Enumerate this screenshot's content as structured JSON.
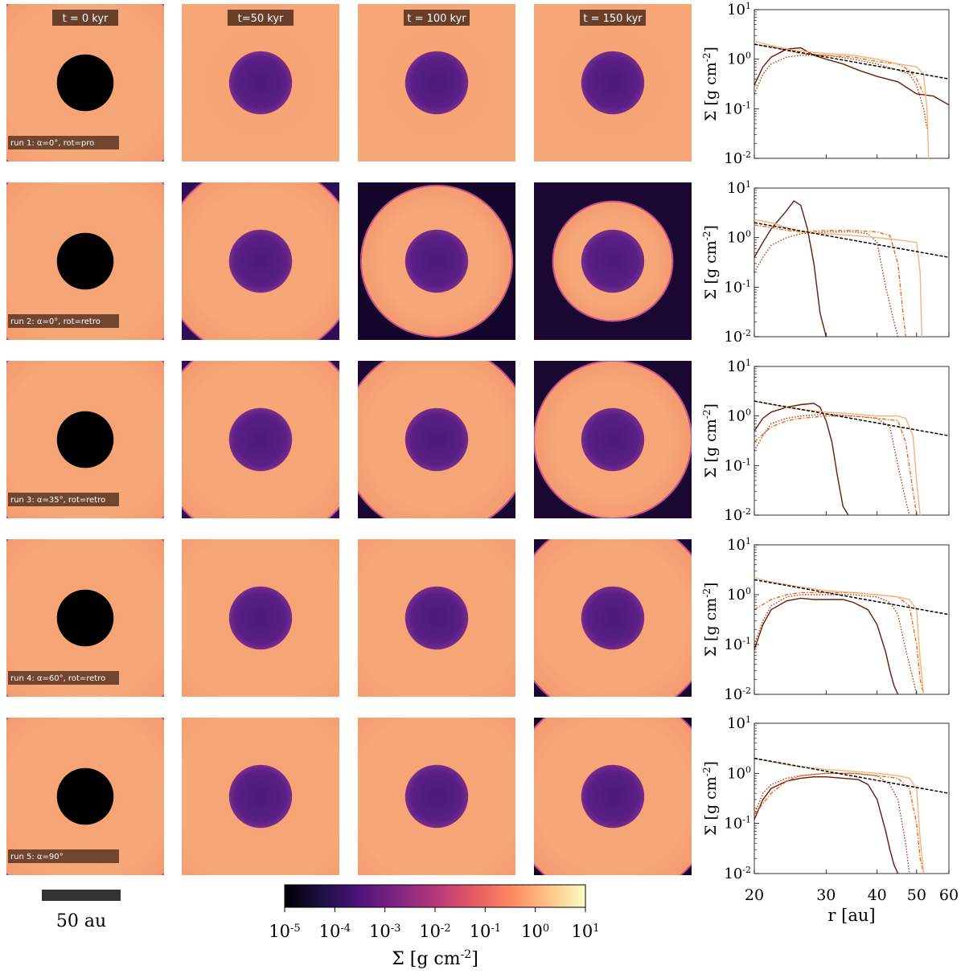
{
  "chart_data": {
    "type": "figure-grid",
    "time_labels": [
      "t = 0 kyr",
      "t=50 kyr",
      "t = 100 kyr",
      "t = 150 kyr"
    ],
    "runs": [
      {
        "label": "run 1: α=0°, rot=pro",
        "maps": [
          {
            "inner_r": 0.18,
            "outer_r": 0.7,
            "bg": "#000000"
          },
          {
            "inner_r": 0.2,
            "outer_r": 1.1,
            "bg": "#eb8566"
          },
          {
            "inner_r": 0.2,
            "outer_r": 1.1,
            "bg": "#f3b381"
          },
          {
            "inner_r": 0.2,
            "outer_r": 1.1,
            "bg": "#eea070"
          }
        ],
        "profiles": [
          {
            "x": [
              20,
              21,
              22,
              24,
              26,
              28,
              30,
              33,
              36,
              40,
              45,
              50,
              55,
              60
            ],
            "y": [
              0.3,
              0.7,
              1.1,
              1.6,
              1.7,
              1.2,
              1.0,
              0.8,
              0.6,
              0.45,
              0.35,
              0.2,
              0.18,
              0.12
            ],
            "color": "#6b1a06",
            "style": "solid"
          },
          {
            "x": [
              20,
              21,
              22,
              24,
              26,
              30,
              35,
              40,
              45,
              48,
              50,
              52,
              53
            ],
            "y": [
              0.2,
              0.5,
              0.8,
              1.1,
              1.2,
              1.2,
              1.0,
              0.8,
              0.6,
              0.5,
              0.3,
              0.1,
              0.04
            ],
            "color": "#b03a10",
            "style": "dotted"
          },
          {
            "x": [
              20,
              22,
              24,
              26,
              30,
              35,
              40,
              45,
              48,
              50,
              52
            ],
            "y": [
              2.0,
              1.8,
              1.5,
              1.3,
              1.2,
              1.1,
              0.9,
              0.8,
              0.6,
              0.4,
              0.2
            ],
            "color": "#e86a1a",
            "style": "dashdot"
          },
          {
            "x": [
              20,
              22,
              25,
              30,
              35,
              40,
              45,
              50,
              52,
              53,
              53.5
            ],
            "y": [
              2.3,
              1.9,
              1.5,
              1.3,
              1.2,
              1.0,
              0.8,
              0.7,
              0.5,
              0.1,
              0.01
            ],
            "color": "#f7b27a",
            "style": "solid"
          }
        ]
      },
      {
        "label": "run 2: α=0°, rot=retro",
        "maps": [
          {
            "inner_r": 0.18,
            "outer_r": 0.7,
            "bg": "#000000"
          },
          {
            "inner_r": 0.2,
            "outer_r": 0.62,
            "bg": "#2e0f55"
          },
          {
            "inner_r": 0.2,
            "outer_r": 0.48,
            "bg": "#14052a"
          },
          {
            "inner_r": 0.2,
            "outer_r": 0.38,
            "bg": "#1a0833"
          }
        ],
        "profiles": [
          {
            "x": [
              20,
              21,
              22,
              24,
              25,
              26,
              27,
              28,
              29,
              30
            ],
            "y": [
              0.4,
              0.8,
              1.5,
              3.5,
              5.5,
              4.5,
              1.5,
              0.3,
              0.03,
              0.01
            ],
            "color": "#6b1a06",
            "style": "solid"
          },
          {
            "x": [
              20,
              21,
              22,
              24,
              26,
              30,
              35,
              38,
              40,
              42,
              44,
              45
            ],
            "y": [
              0.2,
              0.4,
              0.7,
              1.0,
              1.2,
              1.3,
              1.3,
              1.2,
              0.8,
              0.1,
              0.02,
              0.01
            ],
            "color": "#b03a10",
            "style": "dotted"
          },
          {
            "x": [
              20,
              22,
              24,
              26,
              30,
              35,
              40,
              43,
              45,
              46,
              47
            ],
            "y": [
              1.8,
              1.6,
              1.4,
              1.3,
              1.4,
              1.4,
              1.3,
              1.1,
              0.3,
              0.05,
              0.01
            ],
            "color": "#e86a1a",
            "style": "dashdot"
          },
          {
            "x": [
              20,
              22,
              24,
              26,
              30,
              35,
              40,
              45,
              50,
              51,
              51.5
            ],
            "y": [
              2.3,
              2.0,
              1.6,
              1.3,
              1.2,
              1.1,
              1.0,
              0.9,
              0.8,
              0.2,
              0.01
            ],
            "color": "#f7b27a",
            "style": "solid"
          }
        ]
      },
      {
        "label": "run 3: α=35°, rot=retro",
        "maps": [
          {
            "inner_r": 0.18,
            "outer_r": 0.7,
            "bg": "#000000"
          },
          {
            "inner_r": 0.2,
            "outer_r": 0.66,
            "bg": "#2e0f55"
          },
          {
            "inner_r": 0.2,
            "outer_r": 0.6,
            "bg": "#1a0833"
          },
          {
            "inner_r": 0.2,
            "outer_r": 0.5,
            "bg": "#1a0833"
          }
        ],
        "profiles": [
          {
            "x": [
              20,
              21,
              22,
              24,
              26,
              28,
              29,
              30,
              31,
              32,
              33,
              34
            ],
            "y": [
              0.5,
              0.9,
              1.2,
              1.5,
              1.7,
              1.8,
              1.5,
              0.8,
              0.3,
              0.06,
              0.015,
              0.01
            ],
            "color": "#6b1a06",
            "style": "solid"
          },
          {
            "x": [
              20,
              21,
              22,
              24,
              26,
              30,
              35,
              40,
              43,
              45,
              47,
              48
            ],
            "y": [
              0.2,
              0.4,
              0.7,
              0.9,
              1.0,
              1.1,
              1.0,
              0.9,
              0.6,
              0.1,
              0.02,
              0.01
            ],
            "color": "#b03a10",
            "style": "dotted"
          },
          {
            "x": [
              20,
              22,
              24,
              26,
              30,
              35,
              40,
              45,
              47,
              49,
              50
            ],
            "y": [
              0.3,
              0.6,
              0.8,
              0.9,
              1.0,
              1.0,
              0.9,
              0.8,
              0.3,
              0.03,
              0.01
            ],
            "color": "#e86a1a",
            "style": "dashdot"
          },
          {
            "x": [
              20,
              22,
              25,
              30,
              35,
              40,
              45,
              47,
              49,
              50,
              51
            ],
            "y": [
              2.0,
              1.7,
              1.4,
              1.2,
              1.1,
              1.0,
              1.0,
              0.9,
              0.4,
              0.05,
              0.01
            ],
            "color": "#f7b27a",
            "style": "solid"
          }
        ]
      },
      {
        "label": "run 4: α=60°, rot=retro",
        "maps": [
          {
            "inner_r": 0.18,
            "outer_r": 0.7,
            "bg": "#000000"
          },
          {
            "inner_r": 0.2,
            "outer_r": 0.74,
            "bg": "#3a1060"
          },
          {
            "inner_r": 0.2,
            "outer_r": 0.72,
            "bg": "#2a0c4a"
          },
          {
            "inner_r": 0.2,
            "outer_r": 0.64,
            "bg": "#1a0833"
          }
        ],
        "profiles": [
          {
            "x": [
              20,
              21,
              22,
              24,
              26,
              28,
              30,
              33,
              35,
              38,
              40,
              42,
              43,
              44,
              45
            ],
            "y": [
              0.08,
              0.25,
              0.5,
              0.75,
              0.85,
              0.8,
              0.8,
              0.8,
              0.7,
              0.5,
              0.25,
              0.07,
              0.03,
              0.015,
              0.01
            ],
            "color": "#6b1a06",
            "style": "solid"
          },
          {
            "x": [
              20,
              21,
              22,
              24,
              26,
              30,
              35,
              40,
              43,
              45,
              47,
              49,
              50
            ],
            "y": [
              0.1,
              0.3,
              0.6,
              0.9,
              1.0,
              1.0,
              1.0,
              0.9,
              0.7,
              0.4,
              0.08,
              0.02,
              0.01
            ],
            "color": "#b03a10",
            "style": "dotted"
          },
          {
            "x": [
              20,
              22,
              24,
              26,
              30,
              35,
              40,
              45,
              48,
              50,
              51,
              52
            ],
            "y": [
              0.5,
              0.8,
              1.0,
              1.1,
              1.1,
              1.1,
              1.0,
              0.9,
              0.6,
              0.1,
              0.02,
              0.01
            ],
            "color": "#e86a1a",
            "style": "dashdot"
          },
          {
            "x": [
              20,
              22,
              25,
              30,
              35,
              40,
              45,
              48,
              50,
              51,
              52
            ],
            "y": [
              2.2,
              1.8,
              1.5,
              1.2,
              1.1,
              1.0,
              0.9,
              0.8,
              0.5,
              0.05,
              0.01
            ],
            "color": "#f7b27a",
            "style": "solid"
          }
        ]
      },
      {
        "label": "run 5: α=90°",
        "maps": [
          {
            "inner_r": 0.18,
            "outer_r": 0.7,
            "bg": "#000000"
          },
          {
            "inner_r": 0.2,
            "outer_r": 0.76,
            "bg": "#3a1060"
          },
          {
            "inner_r": 0.2,
            "outer_r": 0.72,
            "bg": "#2a0c4a"
          },
          {
            "inner_r": 0.2,
            "outer_r": 0.66,
            "bg": "#14052a"
          }
        ],
        "profiles": [
          {
            "x": [
              20,
              21,
              22,
              24,
              26,
              28,
              30,
              33,
              36,
              38,
              40,
              42,
              43,
              44,
              45
            ],
            "y": [
              0.12,
              0.3,
              0.5,
              0.7,
              0.8,
              0.85,
              0.85,
              0.8,
              0.75,
              0.6,
              0.3,
              0.07,
              0.03,
              0.015,
              0.01
            ],
            "color": "#6b1a06",
            "style": "solid"
          },
          {
            "x": [
              20,
              21,
              22,
              24,
              26,
              30,
              35,
              40,
              43,
              45,
              47,
              48
            ],
            "y": [
              0.15,
              0.4,
              0.6,
              0.8,
              0.9,
              1.0,
              1.0,
              0.9,
              0.6,
              0.3,
              0.04,
              0.01
            ],
            "color": "#b03a10",
            "style": "dotted"
          },
          {
            "x": [
              20,
              22,
              24,
              26,
              30,
              35,
              40,
              45,
              48,
              50,
              51,
              52
            ],
            "y": [
              0.15,
              0.4,
              0.7,
              0.9,
              1.0,
              1.0,
              0.9,
              0.8,
              0.5,
              0.1,
              0.02,
              0.01
            ],
            "color": "#e86a1a",
            "style": "dashdot"
          },
          {
            "x": [
              20,
              22,
              25,
              30,
              35,
              40,
              45,
              48,
              50,
              51,
              52
            ],
            "y": [
              2.0,
              1.7,
              1.4,
              1.2,
              1.1,
              1.0,
              0.9,
              0.8,
              0.5,
              0.05,
              0.01
            ],
            "color": "#f7b27a",
            "style": "solid"
          }
        ]
      }
    ],
    "reference_line": {
      "x": [
        20,
        60
      ],
      "y": [
        2.0,
        0.4
      ],
      "color": "#000000",
      "style": "dashed"
    },
    "profile_axes": {
      "xscale": "log",
      "yscale": "log",
      "xlim": [
        20,
        60
      ],
      "ylim": [
        0.01,
        10
      ],
      "xticks": [
        20,
        30,
        40,
        50,
        60
      ],
      "xticklabels": [
        "20",
        "30",
        "40",
        "50",
        "60"
      ],
      "yticks": [
        0.01,
        0.1,
        1,
        10
      ],
      "ytick_bases": [
        "10",
        "10",
        "10",
        "10"
      ],
      "ytick_exps": [
        "-2",
        "-1",
        "0",
        "1"
      ],
      "xlabel": "r [au]",
      "ylabel_main": "Σ [g cm",
      "ylabel_exp": "-2",
      "ylabel_close": "]"
    },
    "scale_bar": {
      "label": "50 au"
    },
    "colorbar": {
      "tick_bases": [
        "10",
        "10",
        "10",
        "10",
        "10",
        "10",
        "10"
      ],
      "tick_exps": [
        "-5",
        "-4",
        "-3",
        "-2",
        "-1",
        "0",
        "1"
      ],
      "label_main": "Σ [g cm",
      "label_exp": "-2",
      "label_close": "]",
      "colors": [
        "#000004",
        "#1c1044",
        "#4f127b",
        "#812581",
        "#b5367a",
        "#e55964",
        "#fb8761",
        "#fec287",
        "#fcfdbf"
      ]
    }
  }
}
